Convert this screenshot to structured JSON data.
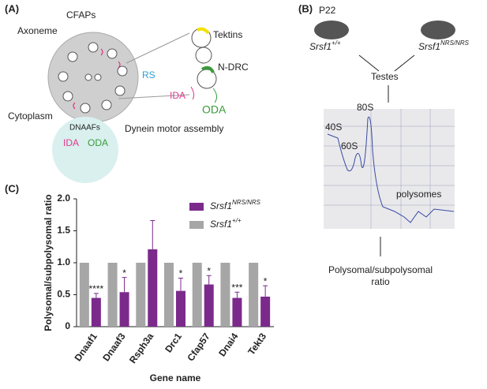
{
  "panel_a": {
    "label": "(A)",
    "cfaps": "CFAPs",
    "axoneme": "Axoneme",
    "rs": "RS",
    "tektins": "Tektins",
    "ndrc": "N-DRC",
    "ida": "IDA",
    "oda": "ODA",
    "cytoplasm": "Cytoplasm",
    "dnaafs": "DNAAFs",
    "ida2": "IDA",
    "oda2": "ODA",
    "assembly": "Dynein motor assembly"
  },
  "panel_b": {
    "label": "(B)",
    "age": "P22",
    "wt": "Srsf1",
    "wt_sup": "+/+",
    "mut": "Srsf1",
    "mut_sup": "NRS/NRS",
    "testes": "Testes",
    "s80": "80S",
    "s40": "40S",
    "s60": "60S",
    "polysomes": "polysomes",
    "ratio_line1": "Polysomal/subpolysomal",
    "ratio_line2": "ratio"
  },
  "chart_data": {
    "type": "bar",
    "panel_label": "(C)",
    "x_label": "Gene name",
    "y_label": "Polysomal/subpolysomal ratio",
    "categories": [
      "Dnaaf1",
      "Dnaaf3",
      "Rsph3a",
      "Drc1",
      "Cfap57",
      "Dnai4",
      "Tekt3"
    ],
    "series": [
      {
        "name": "Srsf1",
        "superscript": "+/+",
        "color": "#a6a6a6",
        "values": [
          1,
          1,
          1,
          1,
          1,
          1,
          1
        ]
      },
      {
        "name": "Srsf1",
        "superscript": "NRS/NRS",
        "color": "#7b2a8c",
        "values": [
          0.45,
          0.54,
          1.21,
          0.56,
          0.66,
          0.45,
          0.47
        ],
        "errors": [
          0.07,
          0.23,
          0.45,
          0.2,
          0.14,
          0.09,
          0.17
        ],
        "significance": [
          "****",
          "*",
          null,
          "*",
          "*",
          "***",
          "*"
        ]
      }
    ],
    "ylim": [
      0,
      2
    ],
    "yticks": [
      0,
      0.5,
      {
        "value": 1,
        "label": "1.0"
      },
      1.5,
      {
        "value": 2,
        "label": "2.0"
      }
    ]
  }
}
